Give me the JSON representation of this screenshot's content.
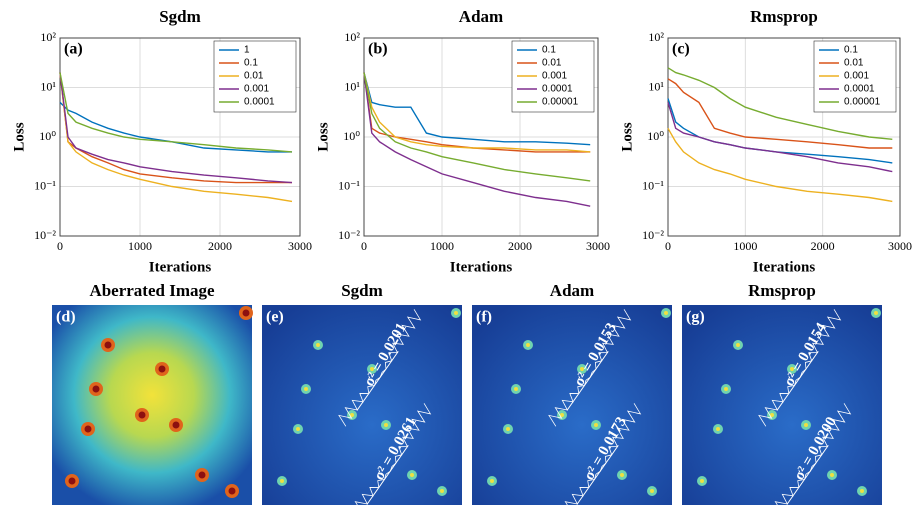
{
  "chart_data": [
    {
      "type": "line",
      "title": "Sgdm",
      "label": "(a)",
      "xlabel": "Iterations",
      "ylabel": "Loss",
      "log_y": true,
      "grid": true,
      "legend": "upper right",
      "x": [
        0,
        100,
        200,
        400,
        600,
        800,
        1000,
        1400,
        1800,
        2200,
        2600,
        2900
      ],
      "xlim": [
        0,
        3000
      ],
      "xticks": [
        0,
        1000,
        2000,
        3000
      ],
      "ylim": [
        0.01,
        100
      ],
      "yticks": [
        {
          "value": 0.01,
          "label": "10⁻²"
        },
        {
          "value": 0.1,
          "label": "10⁻¹"
        },
        {
          "value": 1,
          "label": "10⁰"
        },
        {
          "value": 10,
          "label": "10¹"
        },
        {
          "value": 100,
          "label": "10²"
        }
      ],
      "series": [
        {
          "name": "1",
          "color": "#0072bd",
          "values": [
            5,
            3.5,
            3,
            2,
            1.5,
            1.2,
            1.0,
            0.8,
            0.6,
            0.55,
            0.5,
            0.5
          ]
        },
        {
          "name": "0.1",
          "color": "#d95319",
          "values": [
            20,
            0.8,
            0.6,
            0.4,
            0.3,
            0.22,
            0.18,
            0.15,
            0.13,
            0.12,
            0.12,
            0.12
          ]
        },
        {
          "name": "0.01",
          "color": "#edb120",
          "values": [
            20,
            0.8,
            0.5,
            0.3,
            0.22,
            0.17,
            0.14,
            0.1,
            0.08,
            0.07,
            0.06,
            0.05
          ]
        },
        {
          "name": "0.001",
          "color": "#7e2f8e",
          "values": [
            20,
            1.0,
            0.6,
            0.45,
            0.35,
            0.3,
            0.25,
            0.2,
            0.17,
            0.15,
            0.13,
            0.12
          ]
        },
        {
          "name": "0.0001",
          "color": "#77ac30",
          "values": [
            20,
            3,
            2,
            1.5,
            1.2,
            1.0,
            0.9,
            0.8,
            0.7,
            0.6,
            0.55,
            0.5
          ]
        }
      ]
    },
    {
      "type": "line",
      "title": "Adam",
      "label": "(b)",
      "xlabel": "Iterations",
      "ylabel": "Loss",
      "log_y": true,
      "grid": true,
      "legend": "upper right",
      "x": [
        0,
        100,
        200,
        400,
        600,
        800,
        1000,
        1400,
        1800,
        2200,
        2600,
        2900
      ],
      "xlim": [
        0,
        3000
      ],
      "xticks": [
        0,
        1000,
        2000,
        3000
      ],
      "ylim": [
        0.01,
        100
      ],
      "yticks": [
        {
          "value": 0.01,
          "label": "10⁻²"
        },
        {
          "value": 0.1,
          "label": "10⁻¹"
        },
        {
          "value": 1,
          "label": "10⁰"
        },
        {
          "value": 10,
          "label": "10¹"
        },
        {
          "value": 100,
          "label": "10²"
        }
      ],
      "series": [
        {
          "name": "0.1",
          "color": "#0072bd",
          "values": [
            20,
            5,
            4.5,
            4,
            4,
            1.2,
            1.0,
            0.9,
            0.8,
            0.8,
            0.75,
            0.7
          ]
        },
        {
          "name": "0.01",
          "color": "#d95319",
          "values": [
            20,
            1.5,
            1.2,
            1.0,
            0.9,
            0.8,
            0.7,
            0.6,
            0.55,
            0.5,
            0.5,
            0.5
          ]
        },
        {
          "name": "0.001",
          "color": "#edb120",
          "values": [
            20,
            4,
            2,
            1.0,
            0.8,
            0.7,
            0.65,
            0.6,
            0.6,
            0.55,
            0.55,
            0.5
          ]
        },
        {
          "name": "0.0001",
          "color": "#7e2f8e",
          "values": [
            20,
            1.2,
            0.8,
            0.5,
            0.35,
            0.25,
            0.18,
            0.12,
            0.08,
            0.06,
            0.05,
            0.04
          ]
        },
        {
          "name": "0.00001",
          "color": "#77ac30",
          "values": [
            20,
            3,
            1.5,
            0.8,
            0.6,
            0.5,
            0.4,
            0.3,
            0.22,
            0.18,
            0.15,
            0.13
          ]
        }
      ]
    },
    {
      "type": "line",
      "title": "Rmsprop",
      "label": "(c)",
      "xlabel": "Iterations",
      "ylabel": "Loss",
      "log_y": true,
      "grid": true,
      "legend": "upper right",
      "x": [
        0,
        100,
        200,
        400,
        600,
        800,
        1000,
        1400,
        1800,
        2200,
        2600,
        2900
      ],
      "xlim": [
        0,
        3000
      ],
      "xticks": [
        0,
        1000,
        2000,
        3000
      ],
      "ylim": [
        0.01,
        100
      ],
      "yticks": [
        {
          "value": 0.01,
          "label": "10⁻²"
        },
        {
          "value": 0.1,
          "label": "10⁻¹"
        },
        {
          "value": 1,
          "label": "10⁰"
        },
        {
          "value": 10,
          "label": "10¹"
        },
        {
          "value": 100,
          "label": "10²"
        }
      ],
      "series": [
        {
          "name": "0.1",
          "color": "#0072bd",
          "values": [
            6,
            2,
            1.5,
            1.0,
            0.8,
            0.7,
            0.6,
            0.5,
            0.45,
            0.4,
            0.35,
            0.3
          ]
        },
        {
          "name": "0.01",
          "color": "#d95319",
          "values": [
            15,
            12,
            8,
            5,
            1.5,
            1.2,
            1.0,
            0.9,
            0.8,
            0.7,
            0.6,
            0.6
          ]
        },
        {
          "name": "0.001",
          "color": "#edb120",
          "values": [
            1.5,
            0.8,
            0.5,
            0.3,
            0.22,
            0.18,
            0.14,
            0.1,
            0.08,
            0.07,
            0.06,
            0.05
          ]
        },
        {
          "name": "0.0001",
          "color": "#7e2f8e",
          "values": [
            5,
            1.5,
            1.2,
            1.0,
            0.8,
            0.7,
            0.6,
            0.5,
            0.4,
            0.3,
            0.25,
            0.2
          ]
        },
        {
          "name": "0.00001",
          "color": "#77ac30",
          "values": [
            25,
            20,
            18,
            14,
            10,
            6,
            4,
            2.5,
            1.8,
            1.3,
            1.0,
            0.9
          ]
        }
      ]
    }
  ],
  "images": [
    {
      "title": "Aberrated Image",
      "label": "(d)",
      "annotations": []
    },
    {
      "title": "Sgdm",
      "label": "(e)",
      "annotations": [
        "σ² = 0.0201",
        "σ² = 0.0261"
      ]
    },
    {
      "title": "Adam",
      "label": "(f)",
      "annotations": [
        "σ² = 0.0153",
        "σ² = 0.0173"
      ]
    },
    {
      "title": "Rmsprop",
      "label": "(g)",
      "annotations": [
        "σ² = 0.0154",
        "σ² = 0.0200"
      ]
    }
  ]
}
